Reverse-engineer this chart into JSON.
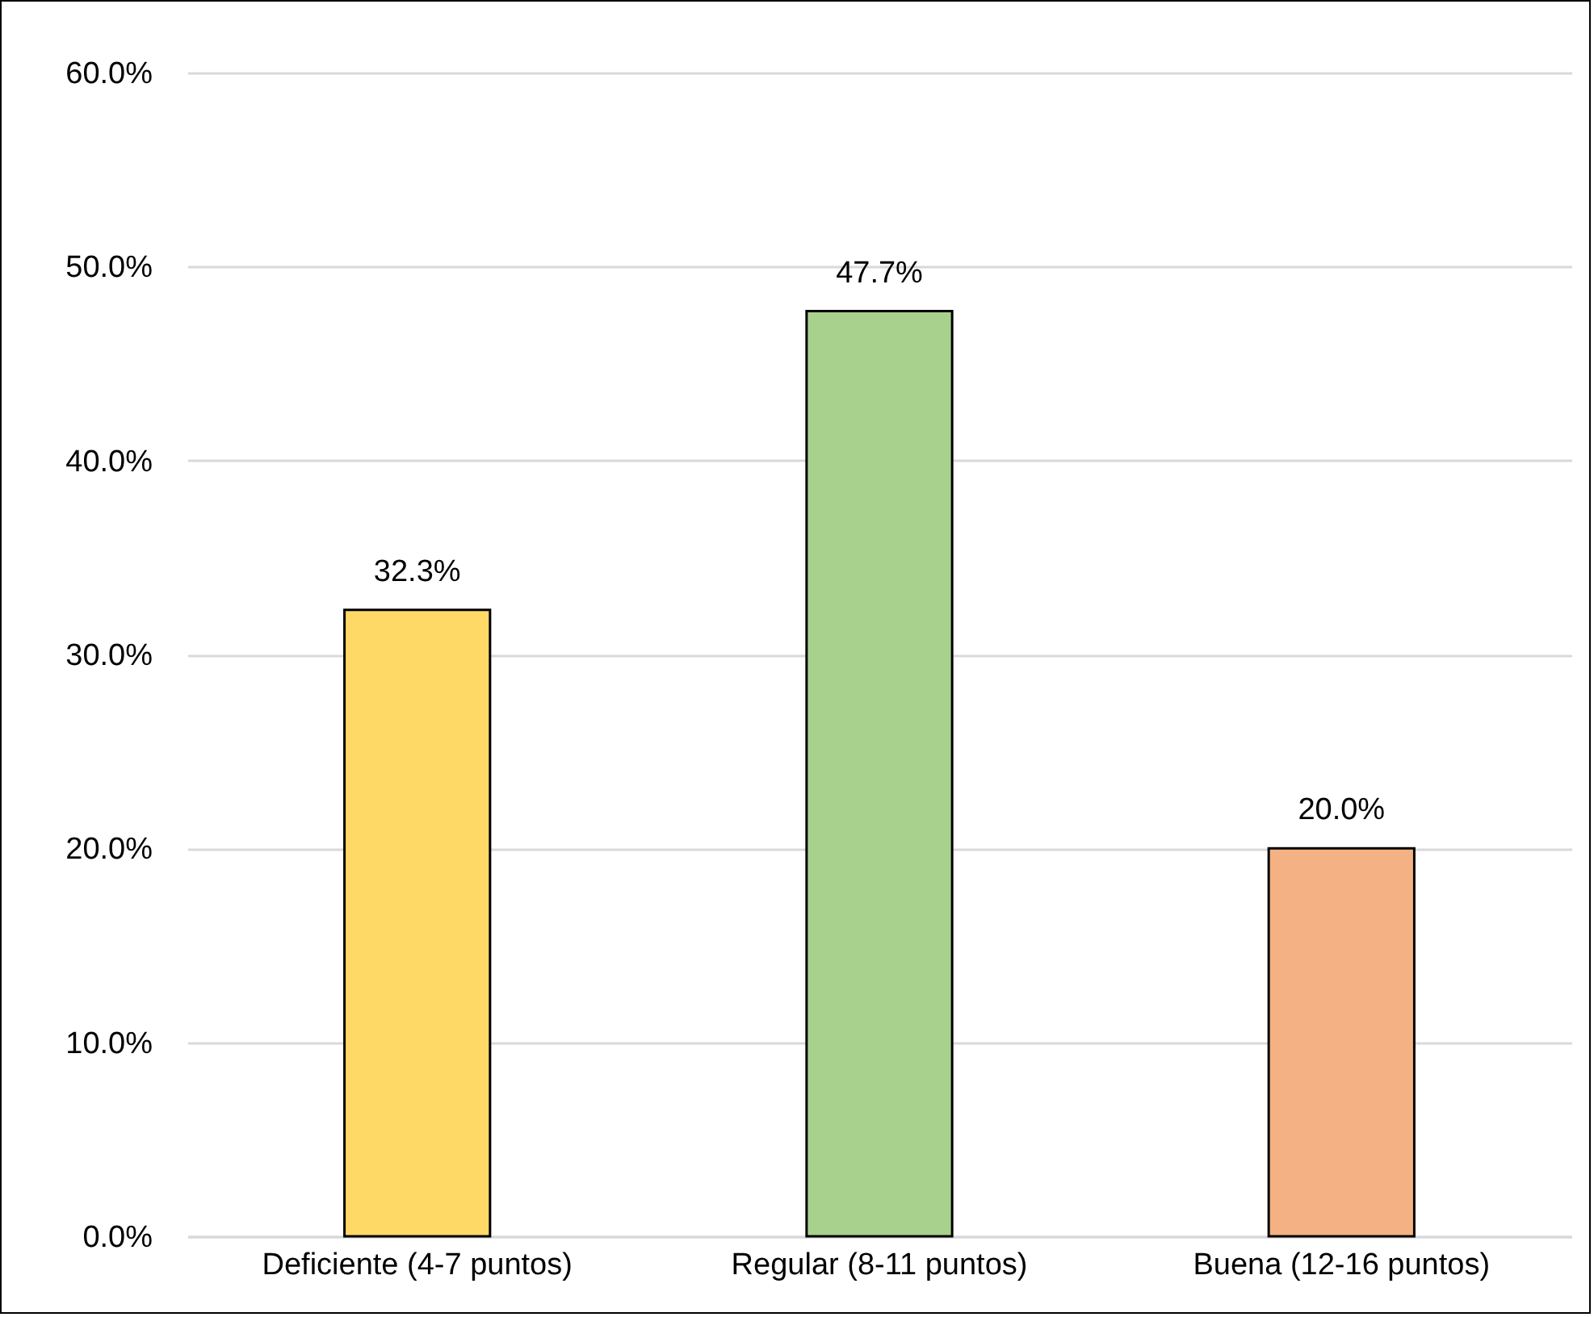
{
  "chart_data": {
    "type": "bar",
    "categories": [
      "Deficiente (4-7 puntos)",
      "Regular (8-11 puntos)",
      "Buena (12-16 puntos)"
    ],
    "values": [
      32.3,
      47.7,
      20.0
    ],
    "colors": [
      "#ffd966",
      "#a9d18e",
      "#f4b183"
    ],
    "value_labels": [
      "32.3%",
      "47.7%",
      "20.0%"
    ],
    "ylim": [
      0,
      60
    ],
    "yticks": [
      {
        "value": 0,
        "label": "0.0%"
      },
      {
        "value": 10,
        "label": "10.0%"
      },
      {
        "value": 20,
        "label": "20.0%"
      },
      {
        "value": 30,
        "label": "30.0%"
      },
      {
        "value": 40,
        "label": "40.0%"
      },
      {
        "value": 50,
        "label": "50.0%"
      },
      {
        "value": 60,
        "label": "60.0%"
      }
    ],
    "grid": "y",
    "legend": false
  }
}
